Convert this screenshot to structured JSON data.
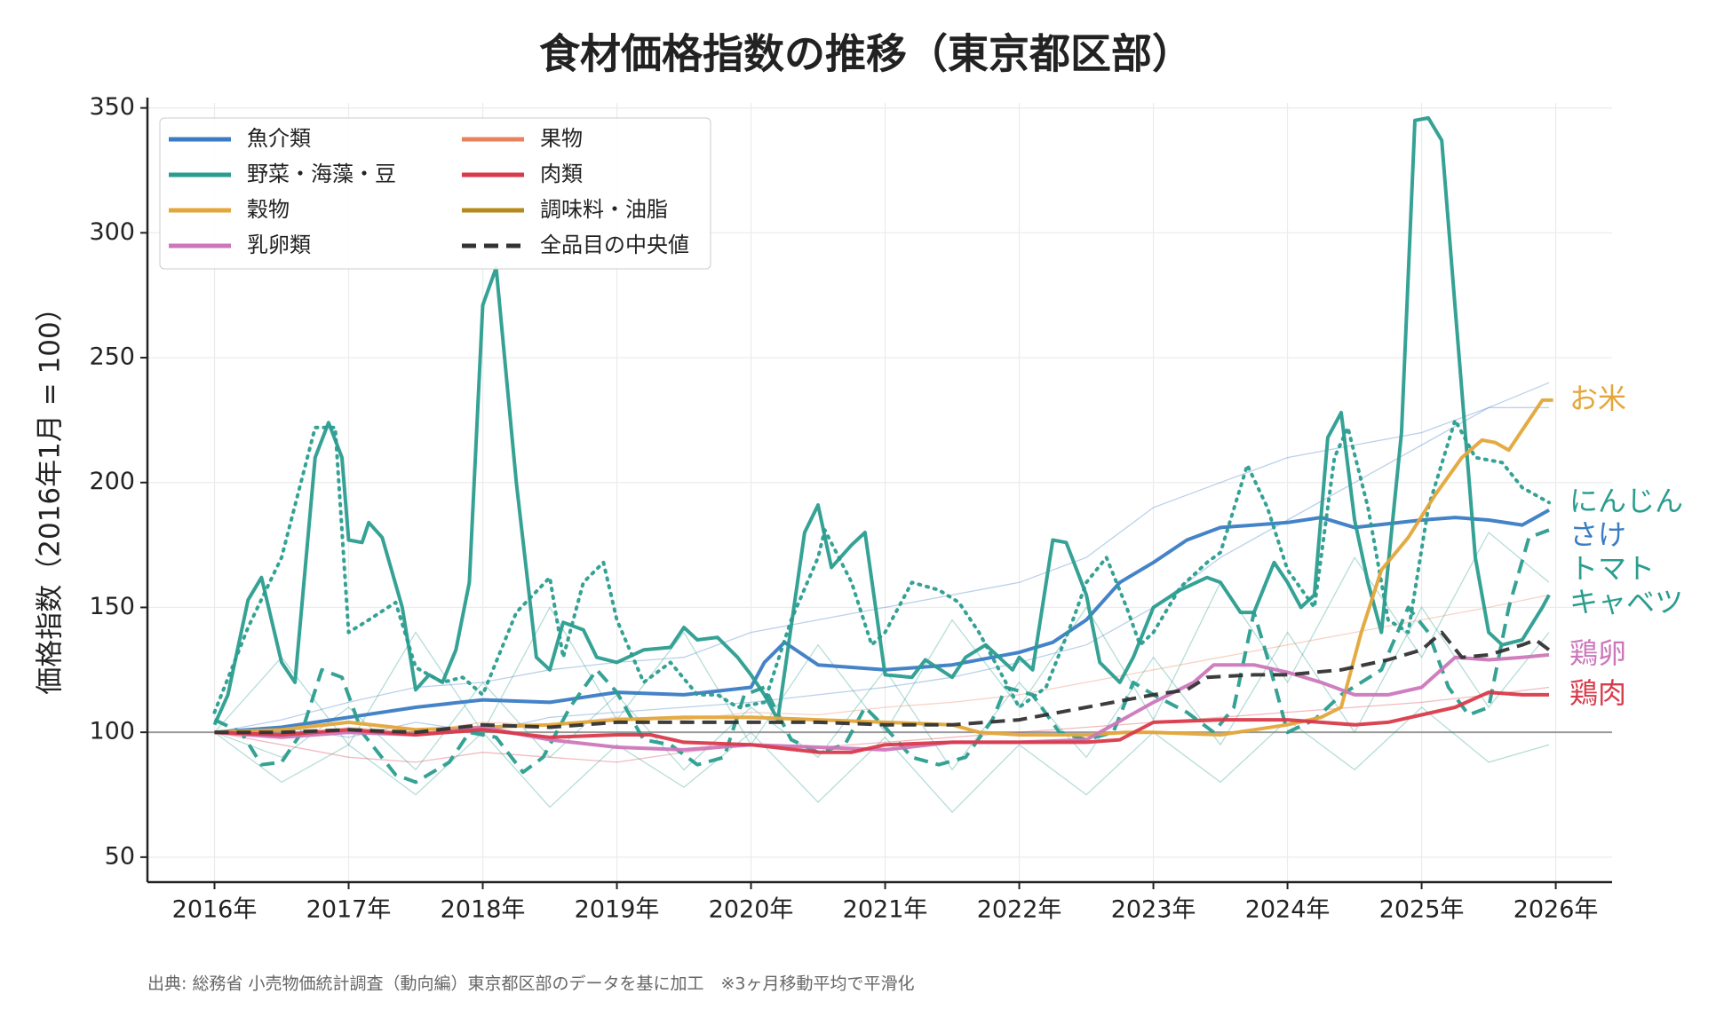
{
  "chart_data": {
    "type": "line",
    "title": "食材価格指数の推移（東京都区部）",
    "y_label": "価格指数（2016年1月 = 100）",
    "footnote": "出典: 総務省 小売物価統計調査（動向編）東京都区部のデータを基に加工　※3ヶ月移動平均で平滑化",
    "xlim": [
      2015.5,
      2026.42
    ],
    "xticks": [
      {
        "value": 2016,
        "label": "2016年"
      },
      {
        "value": 2017,
        "label": "2017年"
      },
      {
        "value": 2018,
        "label": "2018年"
      },
      {
        "value": 2019,
        "label": "2019年"
      },
      {
        "value": 2020,
        "label": "2020年"
      },
      {
        "value": 2021,
        "label": "2021年"
      },
      {
        "value": 2022,
        "label": "2022年"
      },
      {
        "value": 2023,
        "label": "2023年"
      },
      {
        "value": 2024,
        "label": "2024年"
      },
      {
        "value": 2025,
        "label": "2025年"
      },
      {
        "value": 2026,
        "label": "2026年"
      }
    ],
    "ylim": [
      40,
      352
    ],
    "yticks": [
      50,
      100,
      150,
      200,
      250,
      300,
      350
    ],
    "grid": true,
    "reference_line": 100,
    "legend_position": "upper left",
    "legend": [
      {
        "name": "魚介類",
        "color": "#3a7cc4"
      },
      {
        "name": "野菜・海藻・豆",
        "color": "#2a9d8f"
      },
      {
        "name": "穀物",
        "color": "#e3a63a"
      },
      {
        "name": "乳卵類",
        "color": "#cc77bb"
      },
      {
        "name": "果物",
        "color": "#e8825a"
      },
      {
        "name": "肉類",
        "color": "#d93a4a"
      },
      {
        "name": "調味料・油脂",
        "color": "#b58a1a"
      }
    ],
    "background_x": [
      2016,
      2016.5,
      2017,
      2017.5,
      2018,
      2018.5,
      2019,
      2019.5,
      2020,
      2020.5,
      2021,
      2021.5,
      2022,
      2022.5,
      2023,
      2023.5,
      2024,
      2024.5,
      2025,
      2025.5,
      2025.95
    ],
    "background_series": [
      {
        "color": "#3a7cc4",
        "values": [
          100,
          105,
          112,
          118,
          120,
          125,
          128,
          130,
          140,
          145,
          150,
          155,
          160,
          170,
          190,
          200,
          210,
          215,
          220,
          230,
          240
        ]
      },
      {
        "color": "#2a9d8f",
        "values": [
          100,
          90,
          110,
          85,
          120,
          90,
          115,
          85,
          110,
          90,
          125,
          85,
          120,
          90,
          130,
          95,
          140,
          100,
          150,
          110,
          140
        ]
      },
      {
        "color": "#2a9d8f",
        "values": [
          100,
          130,
          95,
          140,
          100,
          150,
          105,
          140,
          95,
          135,
          100,
          145,
          110,
          150,
          105,
          160,
          120,
          170,
          130,
          180,
          160
        ]
      },
      {
        "color": "#e8825a",
        "values": [
          100,
          98,
          102,
          100,
          104,
          103,
          106,
          105,
          108,
          107,
          110,
          112,
          115,
          120,
          125,
          130,
          135,
          140,
          145,
          150,
          155
        ]
      },
      {
        "color": "#d93a4a",
        "values": [
          100,
          95,
          90,
          88,
          92,
          90,
          88,
          92,
          95,
          94,
          96,
          98,
          100,
          102,
          104,
          106,
          108,
          110,
          112,
          115,
          118
        ]
      },
      {
        "color": "#3a7cc4",
        "values": [
          100,
          102,
          98,
          104,
          100,
          106,
          108,
          110,
          112,
          115,
          118,
          122,
          128,
          135,
          150,
          170,
          185,
          200,
          215,
          230,
          230
        ]
      },
      {
        "color": "#2a9d8f",
        "values": [
          100,
          80,
          95,
          75,
          100,
          70,
          95,
          78,
          100,
          72,
          98,
          68,
          95,
          75,
          100,
          80,
          105,
          85,
          110,
          88,
          95
        ]
      }
    ],
    "series": [
      {
        "label": "さけ",
        "color": "#3a7cc4",
        "style": "solid",
        "x": [
          2016,
          2016.5,
          2017,
          2017.5,
          2018,
          2018.5,
          2019,
          2019.5,
          2020,
          2020.1,
          2020.25,
          2020.5,
          2021,
          2021.5,
          2022,
          2022.25,
          2022.5,
          2022.75,
          2023,
          2023.25,
          2023.5,
          2024,
          2024.25,
          2024.5,
          2025,
          2025.25,
          2025.5,
          2025.75,
          2025.95
        ],
        "values": [
          100,
          102,
          106,
          110,
          113,
          112,
          116,
          115,
          118,
          128,
          136,
          127,
          125,
          127,
          132,
          136,
          145,
          160,
          168,
          177,
          182,
          184,
          186,
          182,
          185,
          186,
          185,
          183,
          189
        ]
      },
      {
        "label": "キャベツ",
        "color": "#2a9d8f",
        "style": "solid",
        "x": [
          2016,
          2016.1,
          2016.25,
          2016.35,
          2016.5,
          2016.6,
          2016.75,
          2016.85,
          2016.95,
          2017.0,
          2017.1,
          2017.15,
          2017.25,
          2017.4,
          2017.5,
          2017.6,
          2017.7,
          2017.8,
          2017.9,
          2018.0,
          2018.1,
          2018.25,
          2018.4,
          2018.5,
          2018.6,
          2018.75,
          2018.85,
          2019.0,
          2019.2,
          2019.4,
          2019.5,
          2019.6,
          2019.75,
          2019.9,
          2020.0,
          2020.1,
          2020.2,
          2020.4,
          2020.5,
          2020.6,
          2020.75,
          2020.85,
          2021.0,
          2021.2,
          2021.3,
          2021.5,
          2021.6,
          2021.75,
          2021.85,
          2021.95,
          2022.0,
          2022.1,
          2022.25,
          2022.35,
          2022.5,
          2022.6,
          2022.75,
          2022.85,
          2023.0,
          2023.2,
          2023.4,
          2023.5,
          2023.65,
          2023.75,
          2023.9,
          2024.0,
          2024.1,
          2024.2,
          2024.3,
          2024.4,
          2024.5,
          2024.6,
          2024.7,
          2024.85,
          2024.95,
          2025.05,
          2025.15,
          2025.25,
          2025.4,
          2025.5,
          2025.6,
          2025.75,
          2025.9,
          2025.95
        ],
        "values": [
          103,
          115,
          153,
          162,
          128,
          120,
          210,
          224,
          210,
          177,
          176,
          184,
          178,
          150,
          117,
          123,
          120,
          133,
          160,
          271,
          286,
          200,
          130,
          125,
          144,
          141,
          130,
          128,
          133,
          134,
          142,
          137,
          138,
          130,
          123,
          115,
          105,
          180,
          191,
          166,
          175,
          180,
          123,
          122,
          129,
          122,
          130,
          135,
          130,
          125,
          130,
          125,
          177,
          176,
          155,
          128,
          120,
          130,
          150,
          157,
          162,
          160,
          148,
          148,
          168,
          160,
          150,
          155,
          218,
          228,
          185,
          160,
          140,
          220,
          345,
          346,
          337,
          270,
          170,
          140,
          135,
          137,
          150,
          155
        ]
      },
      {
        "label": "にんじん",
        "color": "#2a9d8f",
        "style": "dotted",
        "x": [
          2016,
          2016.25,
          2016.5,
          2016.75,
          2016.9,
          2017.0,
          2017.15,
          2017.35,
          2017.5,
          2017.7,
          2017.85,
          2018.0,
          2018.25,
          2018.5,
          2018.6,
          2018.75,
          2018.9,
          2019.0,
          2019.2,
          2019.4,
          2019.6,
          2019.75,
          2019.9,
          2020.1,
          2020.3,
          2020.5,
          2020.55,
          2020.75,
          2020.9,
          2021.0,
          2021.2,
          2021.4,
          2021.55,
          2021.7,
          2021.9,
          2022.0,
          2022.2,
          2022.4,
          2022.5,
          2022.65,
          2022.8,
          2022.9,
          2023.0,
          2023.2,
          2023.4,
          2023.5,
          2023.7,
          2023.85,
          2024.0,
          2024.2,
          2024.35,
          2024.45,
          2024.6,
          2024.75,
          2024.9,
          2025.05,
          2025.25,
          2025.4,
          2025.6,
          2025.75,
          2025.95
        ],
        "values": [
          108,
          142,
          170,
          222,
          222,
          140,
          145,
          152,
          126,
          120,
          122,
          115,
          148,
          162,
          130,
          160,
          168,
          145,
          120,
          128,
          115,
          115,
          110,
          112,
          145,
          170,
          181,
          160,
          135,
          140,
          160,
          157,
          152,
          140,
          120,
          110,
          118,
          145,
          160,
          170,
          150,
          135,
          140,
          158,
          168,
          172,
          207,
          190,
          165,
          150,
          210,
          222,
          190,
          145,
          140,
          190,
          225,
          210,
          208,
          198,
          192
        ]
      },
      {
        "label": "トマト",
        "color": "#2a9d8f",
        "style": "dashed",
        "x": [
          2016,
          2016.2,
          2016.35,
          2016.5,
          2016.65,
          2016.8,
          2016.95,
          2017.1,
          2017.35,
          2017.5,
          2017.75,
          2017.9,
          2018.1,
          2018.3,
          2018.45,
          2018.65,
          2018.85,
          2019.0,
          2019.2,
          2019.4,
          2019.6,
          2019.8,
          2019.95,
          2020.1,
          2020.3,
          2020.5,
          2020.7,
          2020.85,
          2021.0,
          2021.2,
          2021.4,
          2021.6,
          2021.8,
          2021.9,
          2022.1,
          2022.3,
          2022.5,
          2022.7,
          2022.85,
          2023.0,
          2023.25,
          2023.45,
          2023.6,
          2023.75,
          2023.85,
          2024.0,
          2024.2,
          2024.4,
          2024.55,
          2024.7,
          2024.9,
          2025.05,
          2025.2,
          2025.35,
          2025.5,
          2025.65,
          2025.8,
          2025.95
        ],
        "values": [
          105,
          100,
          87,
          88,
          100,
          125,
          122,
          100,
          83,
          80,
          88,
          100,
          98,
          84,
          90,
          110,
          125,
          116,
          97,
          95,
          87,
          90,
          115,
          118,
          97,
          92,
          95,
          110,
          102,
          90,
          87,
          90,
          105,
          118,
          115,
          100,
          97,
          100,
          120,
          115,
          108,
          100,
          110,
          148,
          130,
          100,
          105,
          115,
          120,
          125,
          150,
          140,
          118,
          107,
          110,
          150,
          178,
          181
        ]
      },
      {
        "label": "お米",
        "color": "#e3a63a",
        "style": "solid",
        "x": [
          2016,
          2016.5,
          2017,
          2017.5,
          2018,
          2018.5,
          2019,
          2019.5,
          2020,
          2020.5,
          2021,
          2021.5,
          2021.7,
          2022,
          2022.5,
          2022.8,
          2023.0,
          2023.5,
          2023.75,
          2024.0,
          2024.25,
          2024.4,
          2024.55,
          2024.7,
          2024.9,
          2025.1,
          2025.3,
          2025.45,
          2025.55,
          2025.65,
          2025.8,
          2025.9,
          2025.98
        ],
        "values": [
          100,
          101,
          104,
          101,
          102,
          103,
          105,
          106,
          106,
          105,
          104,
          103,
          100,
          99,
          99,
          100,
          100,
          99,
          101,
          103,
          106,
          110,
          140,
          165,
          178,
          195,
          210,
          217,
          216,
          213,
          225,
          233,
          233
        ]
      },
      {
        "label": "鶏卵",
        "color": "#cc77bb",
        "style": "solid",
        "x": [
          2016,
          2016.5,
          2017,
          2017.5,
          2018,
          2018.5,
          2019,
          2019.5,
          2020,
          2020.5,
          2021,
          2021.5,
          2022,
          2022.5,
          2023,
          2023.3,
          2023.45,
          2023.75,
          2024,
          2024.25,
          2024.5,
          2024.75,
          2025.0,
          2025.25,
          2025.5,
          2025.75,
          2025.95
        ],
        "values": [
          100,
          98,
          100,
          99,
          102,
          97,
          94,
          93,
          95,
          94,
          93,
          96,
          96,
          97,
          112,
          120,
          127,
          127,
          124,
          120,
          115,
          115,
          118,
          130,
          129,
          130,
          131
        ]
      },
      {
        "label": "鶏肉",
        "color": "#d93a4a",
        "style": "solid",
        "x": [
          2016,
          2016.5,
          2017,
          2017.5,
          2018,
          2018.5,
          2019,
          2019.25,
          2019.5,
          2020,
          2020.5,
          2020.75,
          2021,
          2021.5,
          2022,
          2022.5,
          2022.75,
          2023,
          2023.5,
          2024,
          2024.5,
          2024.75,
          2025,
          2025.25,
          2025.5,
          2025.75,
          2025.95
        ],
        "values": [
          100,
          99,
          101,
          99,
          101,
          98,
          99,
          99,
          96,
          95,
          92,
          92,
          95,
          96,
          96,
          96,
          97,
          104,
          105,
          105,
          103,
          104,
          107,
          110,
          116,
          115,
          115
        ]
      },
      {
        "name": "全品目の中央値",
        "color": "#333333",
        "style": "dashed",
        "x": [
          2016,
          2016.5,
          2017,
          2017.5,
          2018,
          2018.5,
          2019,
          2019.5,
          2020,
          2020.5,
          2021,
          2021.5,
          2022,
          2022.5,
          2023,
          2023.25,
          2023.4,
          2023.75,
          2024,
          2024.4,
          2024.75,
          2025.0,
          2025.15,
          2025.3,
          2025.5,
          2025.75,
          2025.85,
          2025.95
        ],
        "values": [
          100,
          100,
          101,
          100,
          103,
          102,
          104,
          104,
          104,
          104,
          103,
          103,
          105,
          110,
          115,
          117,
          122,
          123,
          123,
          125,
          129,
          133,
          140,
          130,
          131,
          135,
          137,
          133
        ]
      }
    ]
  }
}
